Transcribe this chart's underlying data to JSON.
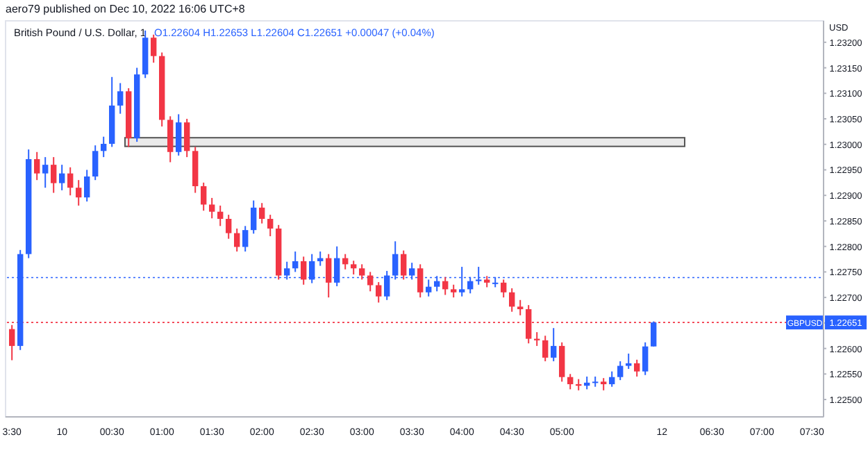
{
  "chart_data": {
    "type": "candlestick",
    "title": "British Pound / U.S. Dollar, 1",
    "subtitle": "O1.22604 H1.22653 L1.22604 C1.22651 +0.00047 (+0.04%)",
    "ylabel": "USD",
    "annotations": [
      "aero79 published on Dec 10, 2022 16:06 UTC+8",
      {
        "text": "1.22651",
        "y": 1.22651
      }
    ],
    "x": [
      "2022-12-09T23:30",
      "2022-12-09T23:35",
      "2022-12-09T23:40",
      "2022-12-09T23:45",
      "2022-12-09T23:50",
      "2022-12-09T23:55",
      "2022-12-10T00:00",
      "2022-12-10T00:05",
      "2022-12-10T00:10",
      "2022-12-10T00:15",
      "2022-12-10T00:20",
      "2022-12-10T00:25",
      "2022-12-10T00:30",
      "2022-12-10T00:35",
      "2022-12-10T00:40",
      "2022-12-10T00:45",
      "2022-12-10T00:50",
      "2022-12-10T00:55",
      "2022-12-10T01:00",
      "2022-12-10T01:05",
      "2022-12-10T01:10",
      "2022-12-10T01:15",
      "2022-12-10T01:20",
      "2022-12-10T01:25",
      "2022-12-10T01:30",
      "2022-12-10T01:35",
      "2022-12-10T01:40",
      "2022-12-10T01:45",
      "2022-12-10T01:50",
      "2022-12-10T01:55",
      "2022-12-10T02:00",
      "2022-12-10T02:05",
      "2022-12-10T02:10",
      "2022-12-10T02:15",
      "2022-12-10T02:20",
      "2022-12-10T02:25",
      "2022-12-10T02:30",
      "2022-12-10T02:35",
      "2022-12-10T02:40",
      "2022-12-10T02:45",
      "2022-12-10T02:50",
      "2022-12-10T02:55",
      "2022-12-10T03:00",
      "2022-12-10T03:05",
      "2022-12-10T03:10",
      "2022-12-10T03:15",
      "2022-12-10T03:20",
      "2022-12-10T03:25",
      "2022-12-10T03:30",
      "2022-12-10T03:35",
      "2022-12-10T03:40",
      "2022-12-10T03:45",
      "2022-12-10T03:50",
      "2022-12-10T03:55",
      "2022-12-10T04:00",
      "2022-12-10T04:05",
      "2022-12-10T04:10",
      "2022-12-10T04:15",
      "2022-12-10T04:20",
      "2022-12-10T04:25",
      "2022-12-10T04:30",
      "2022-12-10T04:35",
      "2022-12-10T04:40",
      "2022-12-10T04:45",
      "2022-12-10T04:50",
      "2022-12-10T04:55",
      "2022-12-10T05:00",
      "2022-12-10T05:05",
      "2022-12-10T05:10",
      "2022-12-10T05:15",
      "2022-12-10T05:20",
      "2022-12-10T05:25",
      "2022-12-10T05:30",
      "2022-12-10T05:35",
      "2022-12-10T05:40",
      "2022-12-10T05:45",
      "2022-12-10T05:50",
      "2022-12-10T05:55"
    ],
    "ohlc": [
      [
        1.22638,
        1.22646,
        1.22577,
        1.22605
      ],
      [
        1.22605,
        1.22793,
        1.22597,
        1.22785
      ],
      [
        1.22785,
        1.2299,
        1.22777,
        1.22971
      ],
      [
        1.22971,
        1.22985,
        1.2293,
        1.22943
      ],
      [
        1.22943,
        1.22975,
        1.22915,
        1.2296
      ],
      [
        1.2296,
        1.22975,
        1.22905,
        1.22924
      ],
      [
        1.22924,
        1.2296,
        1.2291,
        1.22943
      ],
      [
        1.22943,
        1.22955,
        1.229,
        1.22915
      ],
      [
        1.22915,
        1.2293,
        1.2288,
        1.22896
      ],
      [
        1.22896,
        1.2295,
        1.22888,
        1.22937
      ],
      [
        1.22937,
        1.22998,
        1.2293,
        1.22987
      ],
      [
        1.22987,
        1.23015,
        1.22975,
        1.23001
      ],
      [
        1.23001,
        1.23132,
        1.22995,
        1.23076
      ],
      [
        1.23076,
        1.2312,
        1.2306,
        1.23104
      ],
      [
        1.23104,
        1.2311,
        1.22995,
        1.23012
      ],
      [
        1.23012,
        1.2315,
        1.23005,
        1.23137
      ],
      [
        1.23137,
        1.23223,
        1.2313,
        1.23209
      ],
      [
        1.23209,
        1.23215,
        1.2316,
        1.23173
      ],
      [
        1.23173,
        1.2318,
        1.23035,
        1.23048
      ],
      [
        1.23048,
        1.23055,
        1.22965,
        1.22985
      ],
      [
        1.22985,
        1.23059,
        1.22978,
        1.23043
      ],
      [
        1.23043,
        1.2305,
        1.22975,
        1.22987
      ],
      [
        1.22987,
        1.22995,
        1.22905,
        1.22918
      ],
      [
        1.22918,
        1.22925,
        1.2287,
        1.22882
      ],
      [
        1.22882,
        1.22895,
        1.22855,
        1.22868
      ],
      [
        1.22868,
        1.2288,
        1.2284,
        1.22854
      ],
      [
        1.22854,
        1.22862,
        1.22815,
        1.22826
      ],
      [
        1.22826,
        1.22835,
        1.2279,
        1.22799
      ],
      [
        1.22799,
        1.2284,
        1.2279,
        1.22832
      ],
      [
        1.22832,
        1.2289,
        1.22825,
        1.22876
      ],
      [
        1.22876,
        1.22885,
        1.22845,
        1.22854
      ],
      [
        1.22854,
        1.22862,
        1.2282,
        1.22835
      ],
      [
        1.22835,
        1.22842,
        1.22735,
        1.22743
      ],
      [
        1.22743,
        1.2277,
        1.22735,
        1.22757
      ],
      [
        1.22757,
        1.2279,
        1.2275,
        1.22771
      ],
      [
        1.22771,
        1.2278,
        1.22725,
        1.22735
      ],
      [
        1.22735,
        1.22785,
        1.22728,
        1.22771
      ],
      [
        1.22771,
        1.2279,
        1.22762,
        1.22777
      ],
      [
        1.22777,
        1.22785,
        1.227,
        1.22729
      ],
      [
        1.22729,
        1.228,
        1.22722,
        1.22777
      ],
      [
        1.22777,
        1.22785,
        1.22755,
        1.22765
      ],
      [
        1.22765,
        1.22772,
        1.22745,
        1.22757
      ],
      [
        1.22757,
        1.22765,
        1.22735,
        1.22743
      ],
      [
        1.22743,
        1.2275,
        1.22712,
        1.22724
      ],
      [
        1.22724,
        1.2273,
        1.2269,
        1.22702
      ],
      [
        1.22702,
        1.22752,
        1.22695,
        1.22743
      ],
      [
        1.22743,
        1.2281,
        1.22735,
        1.22785
      ],
      [
        1.22785,
        1.22792,
        1.22735,
        1.22743
      ],
      [
        1.22743,
        1.22768,
        1.22735,
        1.22757
      ],
      [
        1.22757,
        1.22765,
        1.227,
        1.2271
      ],
      [
        1.2271,
        1.22735,
        1.22702,
        1.22721
      ],
      [
        1.22721,
        1.22742,
        1.22712,
        1.22732
      ],
      [
        1.22732,
        1.2274,
        1.22705,
        1.22716
      ],
      [
        1.22716,
        1.22725,
        1.227,
        1.2271
      ],
      [
        1.2271,
        1.2276,
        1.22702,
        1.22716
      ],
      [
        1.22716,
        1.2274,
        1.22708,
        1.22732
      ],
      [
        1.22732,
        1.2276,
        1.22725,
        1.22735
      ],
      [
        1.22735,
        1.22742,
        1.2272,
        1.22729
      ],
      [
        1.22729,
        1.2274,
        1.2272,
        1.22729
      ],
      [
        1.22729,
        1.22735,
        1.227,
        1.2271
      ],
      [
        1.2271,
        1.22718,
        1.22672,
        1.22682
      ],
      [
        1.22682,
        1.22695,
        1.22665,
        1.22677
      ],
      [
        1.22677,
        1.22685,
        1.2261,
        1.22619
      ],
      [
        1.22619,
        1.22632,
        1.22605,
        1.22616
      ],
      [
        1.22616,
        1.22625,
        1.22575,
        1.22582
      ],
      [
        1.22582,
        1.2264,
        1.22575,
        1.22605
      ],
      [
        1.22605,
        1.22612,
        1.22535,
        1.22544
      ],
      [
        1.22544,
        1.2255,
        1.2252,
        1.2253
      ],
      [
        1.2253,
        1.2254,
        1.22518,
        1.22527
      ],
      [
        1.22527,
        1.22545,
        1.2252,
        1.22533
      ],
      [
        1.22533,
        1.22545,
        1.22525,
        1.22535
      ],
      [
        1.22535,
        1.22542,
        1.22518,
        1.2253
      ],
      [
        1.2253,
        1.22555,
        1.22525,
        1.22544
      ],
      [
        1.22544,
        1.22575,
        1.22538,
        1.22566
      ],
      [
        1.22566,
        1.2259,
        1.2256,
        1.22571
      ],
      [
        1.22571,
        1.22578,
        1.22545,
        1.22555
      ],
      [
        1.22555,
        1.22612,
        1.22548,
        1.22604
      ],
      [
        1.22604,
        1.22653,
        1.22604,
        1.22651
      ]
    ],
    "colors": [
      "#f23645",
      "#2962ff",
      "#2962ff",
      "#f23645",
      "#2962ff",
      "#f23645",
      "#2962ff",
      "#f23645",
      "#f23645",
      "#2962ff",
      "#2962ff",
      "#2962ff",
      "#2962ff",
      "#2962ff",
      "#f23645",
      "#2962ff",
      "#2962ff",
      "#f23645",
      "#f23645",
      "#f23645",
      "#2962ff",
      "#f23645",
      "#f23645",
      "#f23645",
      "#f23645",
      "#f23645",
      "#f23645",
      "#f23645",
      "#2962ff",
      "#2962ff",
      "#f23645",
      "#f23645",
      "#f23645",
      "#2962ff",
      "#2962ff",
      "#f23645",
      "#2962ff",
      "#2962ff",
      "#f23645",
      "#2962ff",
      "#f23645",
      "#f23645",
      "#f23645",
      "#f23645",
      "#f23645",
      "#2962ff",
      "#2962ff",
      "#f23645",
      "#2962ff",
      "#f23645",
      "#2962ff",
      "#2962ff",
      "#f23645",
      "#f23645",
      "#2962ff",
      "#2962ff",
      "#2962ff",
      "#f23645",
      "#2962ff",
      "#f23645",
      "#f23645",
      "#f23645",
      "#f23645",
      "#f23645",
      "#f23645",
      "#2962ff",
      "#f23645",
      "#f23645",
      "#f23645",
      "#2962ff",
      "#2962ff",
      "#f23645",
      "#2962ff",
      "#2962ff",
      "#2962ff",
      "#f23645",
      "#2962ff",
      "#2962ff"
    ],
    "xlim": [
      "2022-12-09T23:27",
      "2022-12-10T07:37"
    ],
    "xticks": [
      {
        "value": "2022-12-09T23:30",
        "label": "3:30"
      },
      {
        "value": "2022-12-10T00:00",
        "label": "10"
      },
      {
        "value": "2022-12-10T00:30",
        "label": "00:30"
      },
      {
        "value": "2022-12-10T01:00",
        "label": "01:00"
      },
      {
        "value": "2022-12-10T01:30",
        "label": "01:30"
      },
      {
        "value": "2022-12-10T02:00",
        "label": "02:00"
      },
      {
        "value": "2022-12-10T02:30",
        "label": "02:30"
      },
      {
        "value": "2022-12-10T03:00",
        "label": "03:00"
      },
      {
        "value": "2022-12-10T03:30",
        "label": "03:30"
      },
      {
        "value": "2022-12-10T04:00",
        "label": "04:00"
      },
      {
        "value": "2022-12-10T04:30",
        "label": "04:30"
      },
      {
        "value": "2022-12-10T05:00",
        "label": "05:00"
      },
      {
        "value": "2022-12-10T06:00",
        "label": "12"
      },
      {
        "value": "2022-12-10T06:30",
        "label": "06:30"
      },
      {
        "value": "2022-12-10T07:00",
        "label": "07:00"
      },
      {
        "value": "2022-12-10T07:30",
        "label": "07:30"
      }
    ],
    "ylim": [
      1.22466,
      1.23242
    ],
    "yticks": [
      {
        "value": 1.225,
        "label": "1.22500"
      },
      {
        "value": 1.2255,
        "label": "1.22550"
      },
      {
        "value": 1.226,
        "label": "1.22600"
      },
      {
        "value": 1.2265,
        "label": null
      },
      {
        "value": 1.227,
        "label": "1.22700"
      },
      {
        "value": 1.2275,
        "label": "1.22750"
      },
      {
        "value": 1.228,
        "label": "1.22800"
      },
      {
        "value": 1.2285,
        "label": "1.22850"
      },
      {
        "value": 1.229,
        "label": "1.22900"
      },
      {
        "value": 1.2295,
        "label": "1.22950"
      },
      {
        "value": 1.23,
        "label": "1.23000"
      },
      {
        "value": 1.2305,
        "label": "1.23050"
      },
      {
        "value": 1.231,
        "label": "1.23100"
      },
      {
        "value": 1.2315,
        "label": "1.23150"
      },
      {
        "value": 1.232,
        "label": "1.23200"
      }
    ],
    "ref_lines": [
      {
        "axis": "y",
        "value": 1.22739,
        "color": "#2962ff",
        "line_style": "dotted"
      },
      {
        "axis": "y",
        "value": 1.22651,
        "label": "GBPUSD",
        "color": "#f23645",
        "line_style": "dotted"
      }
    ],
    "bands": [
      {
        "axis": "y",
        "from": 1.22996,
        "to": 1.23013,
        "color": "#555555"
      }
    ],
    "legend": false
  }
}
